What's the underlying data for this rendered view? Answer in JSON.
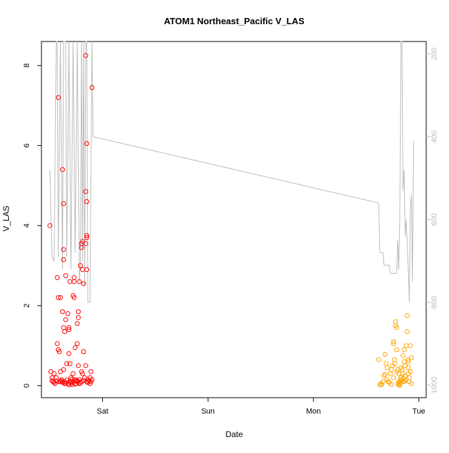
{
  "chart_data": {
    "type": "scatter",
    "title": "ATOM1 Northeast_Pacific V_LAS",
    "xlabel": "Date",
    "ylabel": "V_LAS",
    "x_ticks": [
      "Sat",
      "Sun",
      "Mon",
      "Tue"
    ],
    "x_tick_days": [
      1,
      2,
      3,
      4
    ],
    "xlim_days": [
      0.42,
      4.07
    ],
    "ylim": [
      -0.3,
      8.6
    ],
    "y_ticks": [
      0,
      2,
      4,
      6,
      8
    ],
    "right_axis": {
      "ticks": [
        200,
        400,
        600,
        800,
        1000
      ],
      "ylim": [
        1030,
        170
      ],
      "color": "#bbbbbb"
    },
    "grid": false,
    "series": [
      {
        "color": "#ff0000",
        "marker": "open-circle",
        "points": [
          [
            0.5,
            4.0
          ],
          [
            0.51,
            0.35
          ],
          [
            0.52,
            0.12
          ],
          [
            0.53,
            0.1
          ],
          [
            0.54,
            0.3
          ],
          [
            0.55,
            0.05
          ],
          [
            0.56,
            0.2
          ],
          [
            0.57,
            2.7
          ],
          [
            0.57,
            1.05
          ],
          [
            0.58,
            7.2
          ],
          [
            0.58,
            2.2
          ],
          [
            0.58,
            0.9
          ],
          [
            0.59,
            0.85
          ],
          [
            0.59,
            0.1
          ],
          [
            0.6,
            2.2
          ],
          [
            0.6,
            0.35
          ],
          [
            0.61,
            0.15
          ],
          [
            0.62,
            5.4
          ],
          [
            0.62,
            1.85
          ],
          [
            0.63,
            4.55
          ],
          [
            0.63,
            3.4
          ],
          [
            0.63,
            3.15
          ],
          [
            0.63,
            1.45
          ],
          [
            0.63,
            0.4
          ],
          [
            0.64,
            1.35
          ],
          [
            0.64,
            0.1
          ],
          [
            0.65,
            2.75
          ],
          [
            0.65,
            1.65
          ],
          [
            0.66,
            0.55
          ],
          [
            0.67,
            1.8
          ],
          [
            0.67,
            0.05
          ],
          [
            0.68,
            1.45
          ],
          [
            0.68,
            1.4
          ],
          [
            0.68,
            0.8
          ],
          [
            0.69,
            2.6
          ],
          [
            0.69,
            0.55
          ],
          [
            0.7,
            0.2
          ],
          [
            0.7,
            0.1
          ],
          [
            0.71,
            0.03
          ],
          [
            0.72,
            2.25
          ],
          [
            0.72,
            0.3
          ],
          [
            0.73,
            2.7
          ],
          [
            0.73,
            2.6
          ],
          [
            0.73,
            2.2
          ],
          [
            0.74,
            0.95
          ],
          [
            0.74,
            0.15
          ],
          [
            0.75,
            0.05
          ],
          [
            0.76,
            1.55
          ],
          [
            0.76,
            1.05
          ],
          [
            0.76,
            0.12
          ],
          [
            0.77,
            1.85
          ],
          [
            0.77,
            1.7
          ],
          [
            0.77,
            0.5
          ],
          [
            0.78,
            2.6
          ],
          [
            0.78,
            0.05
          ],
          [
            0.79,
            3.0
          ],
          [
            0.8,
            3.55
          ],
          [
            0.8,
            3.45
          ],
          [
            0.8,
            0.35
          ],
          [
            0.81,
            3.6
          ],
          [
            0.81,
            2.9
          ],
          [
            0.81,
            0.3
          ],
          [
            0.82,
            2.55
          ],
          [
            0.82,
            0.85
          ],
          [
            0.83,
            0.2
          ],
          [
            0.84,
            8.25
          ],
          [
            0.84,
            4.85
          ],
          [
            0.84,
            3.55
          ],
          [
            0.84,
            0.5
          ],
          [
            0.85,
            6.05
          ],
          [
            0.85,
            4.6
          ],
          [
            0.85,
            3.75
          ],
          [
            0.85,
            3.7
          ],
          [
            0.85,
            2.9
          ],
          [
            0.85,
            0.1
          ],
          [
            0.86,
            0.15
          ],
          [
            0.87,
            0.12
          ],
          [
            0.88,
            0.05
          ],
          [
            0.89,
            0.1
          ],
          [
            0.89,
            0.35
          ],
          [
            0.9,
            7.45
          ],
          [
            0.9,
            0.15
          ],
          [
            0.52,
            0.2
          ],
          [
            0.54,
            0.08
          ],
          [
            0.56,
            0.12
          ],
          [
            0.6,
            0.1
          ],
          [
            0.62,
            0.08
          ],
          [
            0.64,
            0.05
          ],
          [
            0.66,
            0.14
          ],
          [
            0.68,
            0.02
          ],
          [
            0.7,
            0.06
          ],
          [
            0.72,
            0.09
          ],
          [
            0.74,
            0.04
          ],
          [
            0.76,
            0.1
          ],
          [
            0.78,
            0.15
          ],
          [
            0.8,
            0.1
          ],
          [
            0.82,
            0.13
          ],
          [
            0.86,
            0.08
          ],
          [
            0.88,
            0.2
          ],
          [
            0.61,
            0.12
          ],
          [
            0.65,
            0.06
          ],
          [
            0.69,
            0.11
          ],
          [
            0.71,
            0.16
          ],
          [
            0.75,
            0.13
          ],
          [
            0.79,
            0.07
          ]
        ]
      },
      {
        "color": "#ffa500",
        "marker": "open-circle",
        "points": [
          [
            3.62,
            0.65
          ],
          [
            3.63,
            0.02
          ],
          [
            3.64,
            0.05
          ],
          [
            3.65,
            0.03
          ],
          [
            3.66,
            0.1
          ],
          [
            3.67,
            0.25
          ],
          [
            3.68,
            0.28
          ],
          [
            3.68,
            0.78
          ],
          [
            3.69,
            0.55
          ],
          [
            3.7,
            0.45
          ],
          [
            3.71,
            0.1
          ],
          [
            3.72,
            0.08
          ],
          [
            3.73,
            0.3
          ],
          [
            3.74,
            0.4
          ],
          [
            3.75,
            0.5
          ],
          [
            3.76,
            1.1
          ],
          [
            3.76,
            1.05
          ],
          [
            3.77,
            0.65
          ],
          [
            3.77,
            0.55
          ],
          [
            3.78,
            1.6
          ],
          [
            3.78,
            1.5
          ],
          [
            3.79,
            1.45
          ],
          [
            3.79,
            0.9
          ],
          [
            3.8,
            0.4
          ],
          [
            3.81,
            0.3
          ],
          [
            3.81,
            0.1
          ],
          [
            3.82,
            0.05
          ],
          [
            3.82,
            0.01
          ],
          [
            3.83,
            0.15
          ],
          [
            3.83,
            0.2
          ],
          [
            3.84,
            0.4
          ],
          [
            3.85,
            0.75
          ],
          [
            3.85,
            0.3
          ],
          [
            3.86,
            0.9
          ],
          [
            3.86,
            0.6
          ],
          [
            3.87,
            0.5
          ],
          [
            3.87,
            0.25
          ],
          [
            3.88,
            1.0
          ],
          [
            3.89,
            1.75
          ],
          [
            3.89,
            1.35
          ],
          [
            3.9,
            0.65
          ],
          [
            3.9,
            0.6
          ],
          [
            3.9,
            0.45
          ],
          [
            3.91,
            0.2
          ],
          [
            3.91,
            0.1
          ],
          [
            3.92,
            1.0
          ],
          [
            3.92,
            0.35
          ],
          [
            3.93,
            0.7
          ],
          [
            3.93,
            0.05
          ],
          [
            3.8,
            0.05
          ],
          [
            3.81,
            0.02
          ],
          [
            3.82,
            0.08
          ],
          [
            3.84,
            0.12
          ],
          [
            3.86,
            0.1
          ],
          [
            3.88,
            0.15
          ],
          [
            3.74,
            0.03
          ],
          [
            3.7,
            0.15
          ],
          [
            3.76,
            0.2
          ],
          [
            3.79,
            0.35
          ],
          [
            3.83,
            0.45
          ],
          [
            3.85,
            0.18
          ],
          [
            3.87,
            0.12
          ],
          [
            3.9,
            0.3
          ]
        ]
      },
      {
        "name": "",
        "type": "line",
        "axis": "right",
        "color": "#bbbbbb",
        "points": [
          [
            0.5,
            480
          ],
          [
            0.52,
            690
          ],
          [
            0.54,
            700
          ],
          [
            0.56,
            170
          ],
          [
            0.57,
            170
          ],
          [
            0.58,
            690
          ],
          [
            0.6,
            170
          ],
          [
            0.62,
            720
          ],
          [
            0.63,
            170
          ],
          [
            0.65,
            170
          ],
          [
            0.66,
            690
          ],
          [
            0.68,
            170
          ],
          [
            0.7,
            720
          ],
          [
            0.72,
            170
          ],
          [
            0.74,
            680
          ],
          [
            0.76,
            170
          ],
          [
            0.78,
            750
          ],
          [
            0.79,
            700
          ],
          [
            0.8,
            170
          ],
          [
            0.81,
            700
          ],
          [
            0.82,
            170
          ],
          [
            0.83,
            760
          ],
          [
            0.84,
            170
          ],
          [
            0.85,
            170
          ],
          [
            0.86,
            800
          ],
          [
            0.88,
            800
          ],
          [
            0.9,
            170
          ],
          [
            0.91,
            400
          ],
          [
            3.62,
            560
          ],
          [
            3.63,
            680
          ],
          [
            3.66,
            680
          ],
          [
            3.67,
            710
          ],
          [
            3.72,
            710
          ],
          [
            3.73,
            730
          ],
          [
            3.79,
            730
          ],
          [
            3.8,
            650
          ],
          [
            3.81,
            720
          ],
          [
            3.82,
            600
          ],
          [
            3.83,
            170
          ],
          [
            3.84,
            170
          ],
          [
            3.85,
            530
          ],
          [
            3.86,
            480
          ],
          [
            3.87,
            640
          ],
          [
            3.88,
            600
          ],
          [
            3.9,
            720
          ],
          [
            3.91,
            800
          ],
          [
            3.92,
            570
          ],
          [
            3.93,
            540
          ],
          [
            3.94,
            750
          ],
          [
            3.95,
            410
          ]
        ]
      }
    ]
  }
}
